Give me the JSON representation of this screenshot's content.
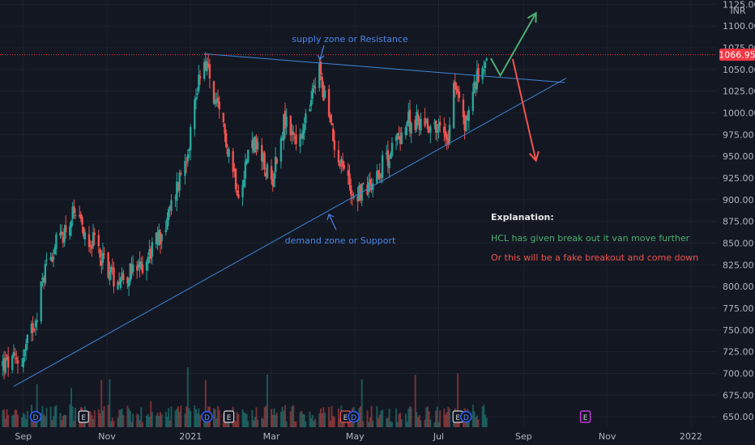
{
  "chart_data": {
    "type": "candlestick",
    "currency": "INR",
    "last_price": "1066.95",
    "x_ticks": [
      "Sep",
      "Nov",
      "2021",
      "Mar",
      "May",
      "Jul",
      "Sep",
      "Nov",
      "2022"
    ],
    "y_ticks": [
      "650.00",
      "675.00",
      "700.00",
      "725.00",
      "750.00",
      "775.00",
      "800.00",
      "825.00",
      "850.00",
      "875.00",
      "900.00",
      "925.00",
      "950.00",
      "975.00",
      "1000.00",
      "1025.00",
      "1050.00",
      "1075.00",
      "1100.00",
      "1125.00"
    ],
    "ylim": [
      638,
      1130
    ],
    "date_range": [
      "2020-08-15",
      "2022-01-20"
    ],
    "series_anchors": [
      {
        "date": "2020-08-15",
        "close": 710
      },
      {
        "date": "2020-08-31",
        "close": 715
      },
      {
        "date": "2020-09-10",
        "close": 765
      },
      {
        "date": "2020-09-18",
        "close": 830
      },
      {
        "date": "2020-10-07",
        "close": 880
      },
      {
        "date": "2020-10-25",
        "close": 845
      },
      {
        "date": "2020-11-06",
        "close": 810
      },
      {
        "date": "2020-11-24",
        "close": 818
      },
      {
        "date": "2020-12-14",
        "close": 870
      },
      {
        "date": "2020-12-30",
        "close": 960
      },
      {
        "date": "2021-01-08",
        "close": 1050
      },
      {
        "date": "2021-01-12",
        "close": 1060
      },
      {
        "date": "2021-01-19",
        "close": 1010
      },
      {
        "date": "2021-01-27",
        "close": 970
      },
      {
        "date": "2021-02-05",
        "close": 910
      },
      {
        "date": "2021-02-15",
        "close": 970
      },
      {
        "date": "2021-03-01",
        "close": 920
      },
      {
        "date": "2021-03-10",
        "close": 990
      },
      {
        "date": "2021-03-22",
        "close": 965
      },
      {
        "date": "2021-04-05",
        "close": 1050
      },
      {
        "date": "2021-04-15",
        "close": 970
      },
      {
        "date": "2021-04-30",
        "close": 905
      },
      {
        "date": "2021-05-10",
        "close": 915
      },
      {
        "date": "2021-05-25",
        "close": 950
      },
      {
        "date": "2021-06-08",
        "close": 990
      },
      {
        "date": "2021-06-22",
        "close": 990
      },
      {
        "date": "2021-07-08",
        "close": 975
      },
      {
        "date": "2021-07-12",
        "close": 1040
      },
      {
        "date": "2021-07-20",
        "close": 985
      },
      {
        "date": "2021-07-27",
        "close": 1030
      },
      {
        "date": "2021-08-05",
        "close": 1066.95
      }
    ],
    "lines": [
      {
        "name": "resistance-line",
        "start": {
          "date": "2021-01-11",
          "price": 1068
        },
        "end": {
          "date": "2021-10-01",
          "price": 1035
        }
      },
      {
        "name": "support-line",
        "start": {
          "date": "2020-08-25",
          "price": 685
        },
        "end": {
          "date": "2021-10-02",
          "price": 1040
        }
      }
    ],
    "arrows": [
      {
        "name": "bullish-arrow",
        "color": "#4caf72",
        "points": [
          {
            "date": "2021-08-08",
            "price": 1063
          },
          {
            "date": "2021-08-15",
            "price": 1043
          },
          {
            "date": "2021-09-10",
            "price": 1115
          }
        ]
      },
      {
        "name": "bearish-arrow",
        "color": "#ef5350",
        "points": [
          {
            "date": "2021-08-24",
            "price": 1062
          },
          {
            "date": "2021-09-10",
            "price": 945
          }
        ]
      }
    ],
    "events": [
      {
        "date": "2020-09-10",
        "label": "D",
        "type": "dividend"
      },
      {
        "date": "2020-10-15",
        "label": "E",
        "type": "earnings"
      },
      {
        "date": "2021-01-13",
        "label": "D",
        "type": "dividend"
      },
      {
        "date": "2021-01-29",
        "label": "E",
        "type": "earnings"
      },
      {
        "date": "2021-04-24",
        "label": "E",
        "type": "earnings"
      },
      {
        "date": "2021-04-30",
        "label": "D",
        "type": "dividend"
      },
      {
        "date": "2021-07-15",
        "label": "E",
        "type": "earnings"
      },
      {
        "date": "2021-07-21",
        "label": "D",
        "type": "dividend"
      },
      {
        "date": "2021-10-16",
        "label": "E",
        "type": "earnings"
      }
    ]
  },
  "annotations": {
    "resistance_label": "supply zone or Resistance",
    "support_label": "demand zone or Support",
    "explanation_title": "Explanation:",
    "explanation_bullish": "HCL has given break out it van move further",
    "explanation_bearish": "Or this will be a fake breakout and come down"
  },
  "colors": {
    "background": "#131722",
    "up": "#26a69a",
    "down": "#ef5350",
    "trendline": "#3d86d8",
    "annotation_blue": "#4a86e8",
    "price_line": "#f23645",
    "grid": "#1e222d",
    "axis_text": "#b2b5be"
  }
}
